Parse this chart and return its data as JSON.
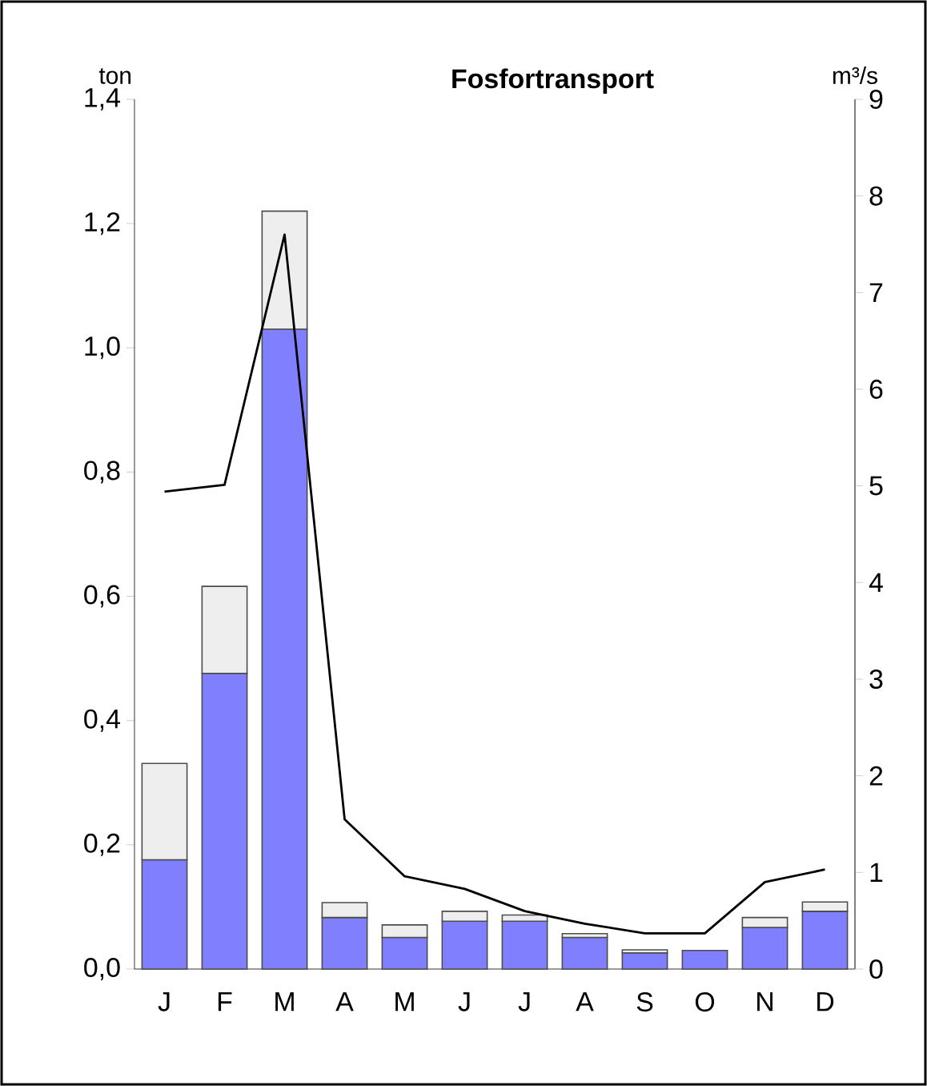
{
  "chart_data": {
    "type": "bar",
    "title": "Fosfortransport",
    "ylabel": "ton",
    "y2label": "m³/s",
    "categories": [
      "J",
      "F",
      "M",
      "A",
      "M",
      "J",
      "J",
      "A",
      "S",
      "O",
      "N",
      "D"
    ],
    "stacked": true,
    "ylim": [
      0,
      1.4
    ],
    "yticks": [
      {
        "value": 0,
        "label": "0,0"
      },
      {
        "value": 0.2,
        "label": "0,2"
      },
      {
        "value": 0.4,
        "label": "0,4"
      },
      {
        "value": 0.6,
        "label": "0,6"
      },
      {
        "value": 0.8,
        "label": "0,8"
      },
      {
        "value": 1.0,
        "label": "1,0"
      },
      {
        "value": 1.2,
        "label": "1,2"
      },
      {
        "value": 1.4,
        "label": "1,4"
      }
    ],
    "y2lim": [
      0,
      9
    ],
    "y2ticks": [
      0,
      1,
      2,
      3,
      4,
      5,
      6,
      7,
      8,
      9
    ],
    "series": [
      {
        "color": "#8080ff",
        "values": [
          0.176,
          0.476,
          1.03,
          0.083,
          0.051,
          0.077,
          0.077,
          0.051,
          0.026,
          0.03,
          0.067,
          0.093
        ]
      },
      {
        "color": "#eeeeee",
        "values": [
          0.155,
          0.14,
          0.19,
          0.024,
          0.02,
          0.016,
          0.01,
          0.006,
          0.005,
          0,
          0.016,
          0.015
        ]
      },
      {
        "type": "line",
        "axis": "y2",
        "color": "#000000",
        "values": [
          4.94,
          5.01,
          7.6,
          1.55,
          0.96,
          0.83,
          0.6,
          0.47,
          0.37,
          0.37,
          0.9,
          1.03
        ]
      }
    ]
  }
}
